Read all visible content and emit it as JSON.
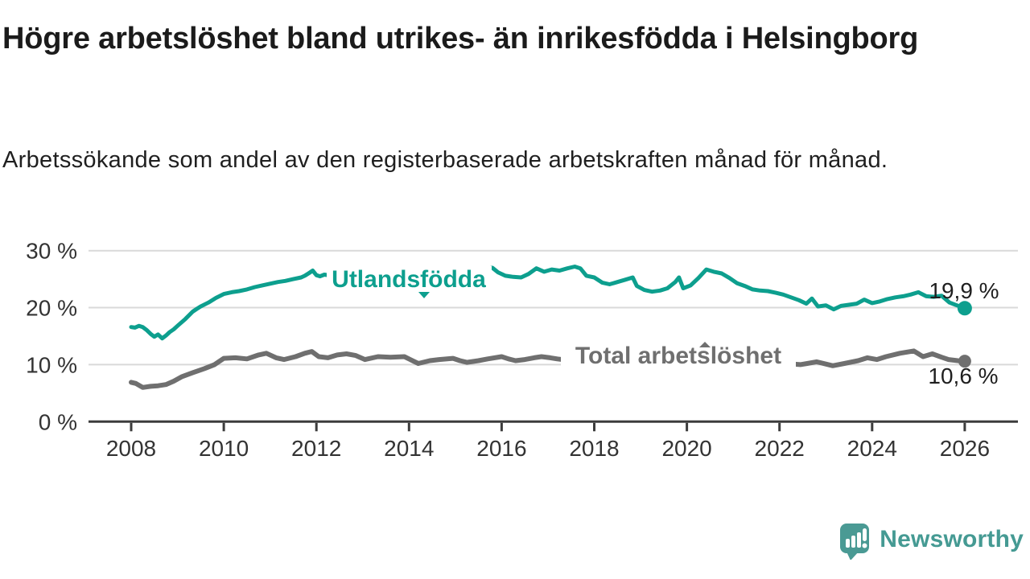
{
  "header": {
    "title": "Högre arbetslöshet bland utrikes- än inrikesfödda i Helsingborg",
    "subtitle": "Arbetssökande som andel av den registerbaserade arbetskraften månad för månad."
  },
  "branding": {
    "name": "Newsworthy",
    "icon": "speech-bubble-bar-chart-icon",
    "color": "#459a93",
    "bubble_color": "#4a9a94"
  },
  "chart_data": {
    "type": "line",
    "title": "Högre arbetslöshet bland utrikes- än inrikesfödda i Helsingborg",
    "subtitle": "Arbetssökande som andel av den registerbaserade arbetskraften månad för månad.",
    "x_unit": "year (monthly observations)",
    "x_range": [
      2008,
      2026.2
    ],
    "x_ticks": [
      2008,
      2010,
      2012,
      2014,
      2016,
      2018,
      2020,
      2022,
      2024,
      2026
    ],
    "ylim": [
      0,
      30
    ],
    "y_ticks": [
      {
        "value": 0,
        "label": "0 %"
      },
      {
        "value": 10,
        "label": "10 %"
      },
      {
        "value": 20,
        "label": "20 %"
      },
      {
        "value": 30,
        "label": "30 %"
      }
    ],
    "grid": true,
    "colors": {
      "grid": "#d9d9d9",
      "axis": "#3c3c3c",
      "tick_text": "#333333"
    },
    "series": [
      {
        "name": "Utlandsfödda",
        "color": "#0d9f8e",
        "end_label": "19,9 %",
        "end_value": 19.9,
        "points": [
          [
            2008.0,
            16.6
          ],
          [
            2008.08,
            16.5
          ],
          [
            2008.17,
            16.8
          ],
          [
            2008.25,
            16.6
          ],
          [
            2008.33,
            16.1
          ],
          [
            2008.42,
            15.4
          ],
          [
            2008.5,
            14.9
          ],
          [
            2008.58,
            15.3
          ],
          [
            2008.67,
            14.6
          ],
          [
            2008.75,
            15.1
          ],
          [
            2008.83,
            15.7
          ],
          [
            2008.92,
            16.2
          ],
          [
            2009.0,
            16.8
          ],
          [
            2009.17,
            18.0
          ],
          [
            2009.33,
            19.3
          ],
          [
            2009.42,
            19.8
          ],
          [
            2009.5,
            20.2
          ],
          [
            2009.67,
            20.9
          ],
          [
            2009.83,
            21.7
          ],
          [
            2010.0,
            22.4
          ],
          [
            2010.17,
            22.7
          ],
          [
            2010.33,
            22.9
          ],
          [
            2010.5,
            23.2
          ],
          [
            2010.67,
            23.6
          ],
          [
            2010.83,
            23.9
          ],
          [
            2011.0,
            24.2
          ],
          [
            2011.17,
            24.5
          ],
          [
            2011.33,
            24.7
          ],
          [
            2011.5,
            25.0
          ],
          [
            2011.67,
            25.3
          ],
          [
            2011.75,
            25.6
          ],
          [
            2011.83,
            26.0
          ],
          [
            2011.92,
            26.5
          ],
          [
            2012.0,
            25.7
          ],
          [
            2012.08,
            25.5
          ],
          [
            2012.17,
            25.8
          ],
          [
            2012.33,
            25.6
          ],
          [
            2012.5,
            25.4
          ],
          [
            2012.67,
            25.7
          ],
          [
            2012.83,
            25.9
          ],
          [
            2013.0,
            26.0
          ],
          [
            2013.17,
            25.7
          ],
          [
            2013.33,
            25.9
          ],
          [
            2013.5,
            25.6
          ],
          [
            2013.67,
            25.9
          ],
          [
            2013.83,
            26.1
          ],
          [
            2014.0,
            25.8
          ],
          [
            2014.17,
            26.0
          ],
          [
            2014.33,
            25.7
          ],
          [
            2014.5,
            25.9
          ],
          [
            2014.67,
            26.1
          ],
          [
            2014.83,
            25.9
          ],
          [
            2015.0,
            26.1
          ],
          [
            2015.17,
            26.3
          ],
          [
            2015.33,
            26.4
          ],
          [
            2015.5,
            26.5
          ],
          [
            2015.67,
            26.8
          ],
          [
            2015.8,
            27.0
          ],
          [
            2015.92,
            26.2
          ],
          [
            2016.08,
            25.6
          ],
          [
            2016.25,
            25.4
          ],
          [
            2016.42,
            25.3
          ],
          [
            2016.58,
            25.9
          ],
          [
            2016.75,
            26.9
          ],
          [
            2016.92,
            26.3
          ],
          [
            2017.08,
            26.7
          ],
          [
            2017.25,
            26.5
          ],
          [
            2017.42,
            26.9
          ],
          [
            2017.58,
            27.2
          ],
          [
            2017.7,
            26.9
          ],
          [
            2017.83,
            25.6
          ],
          [
            2018.0,
            25.3
          ],
          [
            2018.17,
            24.4
          ],
          [
            2018.33,
            24.1
          ],
          [
            2018.5,
            24.5
          ],
          [
            2018.67,
            24.9
          ],
          [
            2018.83,
            25.3
          ],
          [
            2018.92,
            23.8
          ],
          [
            2019.08,
            23.1
          ],
          [
            2019.25,
            22.8
          ],
          [
            2019.42,
            23.0
          ],
          [
            2019.58,
            23.4
          ],
          [
            2019.75,
            24.5
          ],
          [
            2019.83,
            25.3
          ],
          [
            2019.92,
            23.4
          ],
          [
            2020.08,
            23.9
          ],
          [
            2020.25,
            25.2
          ],
          [
            2020.42,
            26.7
          ],
          [
            2020.58,
            26.3
          ],
          [
            2020.75,
            26.0
          ],
          [
            2020.92,
            25.2
          ],
          [
            2021.08,
            24.3
          ],
          [
            2021.25,
            23.8
          ],
          [
            2021.42,
            23.2
          ],
          [
            2021.58,
            23.0
          ],
          [
            2021.75,
            22.9
          ],
          [
            2021.92,
            22.6
          ],
          [
            2022.08,
            22.3
          ],
          [
            2022.25,
            21.8
          ],
          [
            2022.42,
            21.3
          ],
          [
            2022.58,
            20.7
          ],
          [
            2022.7,
            21.6
          ],
          [
            2022.83,
            20.2
          ],
          [
            2023.0,
            20.4
          ],
          [
            2023.17,
            19.7
          ],
          [
            2023.33,
            20.3
          ],
          [
            2023.5,
            20.5
          ],
          [
            2023.67,
            20.7
          ],
          [
            2023.83,
            21.4
          ],
          [
            2024.0,
            20.8
          ],
          [
            2024.17,
            21.1
          ],
          [
            2024.33,
            21.5
          ],
          [
            2024.5,
            21.8
          ],
          [
            2024.67,
            22.0
          ],
          [
            2024.83,
            22.3
          ],
          [
            2025.0,
            22.7
          ],
          [
            2025.17,
            22.0
          ],
          [
            2025.33,
            21.9
          ],
          [
            2025.5,
            22.1
          ],
          [
            2025.67,
            20.9
          ],
          [
            2025.83,
            20.4
          ],
          [
            2026.0,
            19.9
          ]
        ]
      },
      {
        "name": "Total arbetslöshet",
        "color": "#6f6f6f",
        "end_label": "10,6 %",
        "end_value": 10.6,
        "points": [
          [
            2008.0,
            6.9
          ],
          [
            2008.1,
            6.7
          ],
          [
            2008.25,
            6.0
          ],
          [
            2008.42,
            6.2
          ],
          [
            2008.58,
            6.3
          ],
          [
            2008.75,
            6.5
          ],
          [
            2008.92,
            7.1
          ],
          [
            2009.1,
            7.9
          ],
          [
            2009.33,
            8.6
          ],
          [
            2009.58,
            9.3
          ],
          [
            2009.8,
            10.0
          ],
          [
            2010.0,
            11.1
          ],
          [
            2010.25,
            11.2
          ],
          [
            2010.5,
            11.0
          ],
          [
            2010.75,
            11.7
          ],
          [
            2010.92,
            12.0
          ],
          [
            2011.13,
            11.2
          ],
          [
            2011.3,
            10.9
          ],
          [
            2011.55,
            11.4
          ],
          [
            2011.75,
            12.0
          ],
          [
            2011.9,
            12.3
          ],
          [
            2012.05,
            11.4
          ],
          [
            2012.25,
            11.2
          ],
          [
            2012.45,
            11.7
          ],
          [
            2012.65,
            11.9
          ],
          [
            2012.85,
            11.6
          ],
          [
            2013.05,
            10.9
          ],
          [
            2013.33,
            11.4
          ],
          [
            2013.6,
            11.3
          ],
          [
            2013.9,
            11.4
          ],
          [
            2014.05,
            10.8
          ],
          [
            2014.2,
            10.2
          ],
          [
            2014.45,
            10.7
          ],
          [
            2014.65,
            10.9
          ],
          [
            2014.95,
            11.1
          ],
          [
            2015.1,
            10.7
          ],
          [
            2015.25,
            10.4
          ],
          [
            2015.5,
            10.7
          ],
          [
            2015.7,
            11.0
          ],
          [
            2016.0,
            11.4
          ],
          [
            2016.15,
            11.0
          ],
          [
            2016.3,
            10.7
          ],
          [
            2016.5,
            10.9
          ],
          [
            2016.7,
            11.2
          ],
          [
            2016.86,
            11.4
          ],
          [
            2017.05,
            11.2
          ],
          [
            2017.2,
            11.0
          ],
          [
            2017.5,
            10.7
          ],
          [
            2017.8,
            10.4
          ],
          [
            2018.1,
            10.2
          ],
          [
            2018.5,
            10.0
          ],
          [
            2018.9,
            10.1
          ],
          [
            2019.3,
            10.0
          ],
          [
            2019.7,
            10.3
          ],
          [
            2020.1,
            11.0
          ],
          [
            2020.4,
            11.9
          ],
          [
            2020.8,
            11.6
          ],
          [
            2021.2,
            11.0
          ],
          [
            2021.6,
            10.5
          ],
          [
            2021.95,
            10.2
          ],
          [
            2022.3,
            10.1
          ],
          [
            2022.45,
            10.0
          ],
          [
            2022.6,
            10.2
          ],
          [
            2022.8,
            10.5
          ],
          [
            2023.0,
            10.1
          ],
          [
            2023.15,
            9.8
          ],
          [
            2023.4,
            10.2
          ],
          [
            2023.7,
            10.7
          ],
          [
            2023.9,
            11.2
          ],
          [
            2024.1,
            10.9
          ],
          [
            2024.3,
            11.4
          ],
          [
            2024.6,
            12.0
          ],
          [
            2024.9,
            12.4
          ],
          [
            2025.1,
            11.4
          ],
          [
            2025.3,
            11.9
          ],
          [
            2025.5,
            11.3
          ],
          [
            2025.65,
            10.9
          ],
          [
            2025.85,
            10.7
          ],
          [
            2026.0,
            10.6
          ]
        ]
      }
    ],
    "legend_position": "inline-series-labels"
  }
}
